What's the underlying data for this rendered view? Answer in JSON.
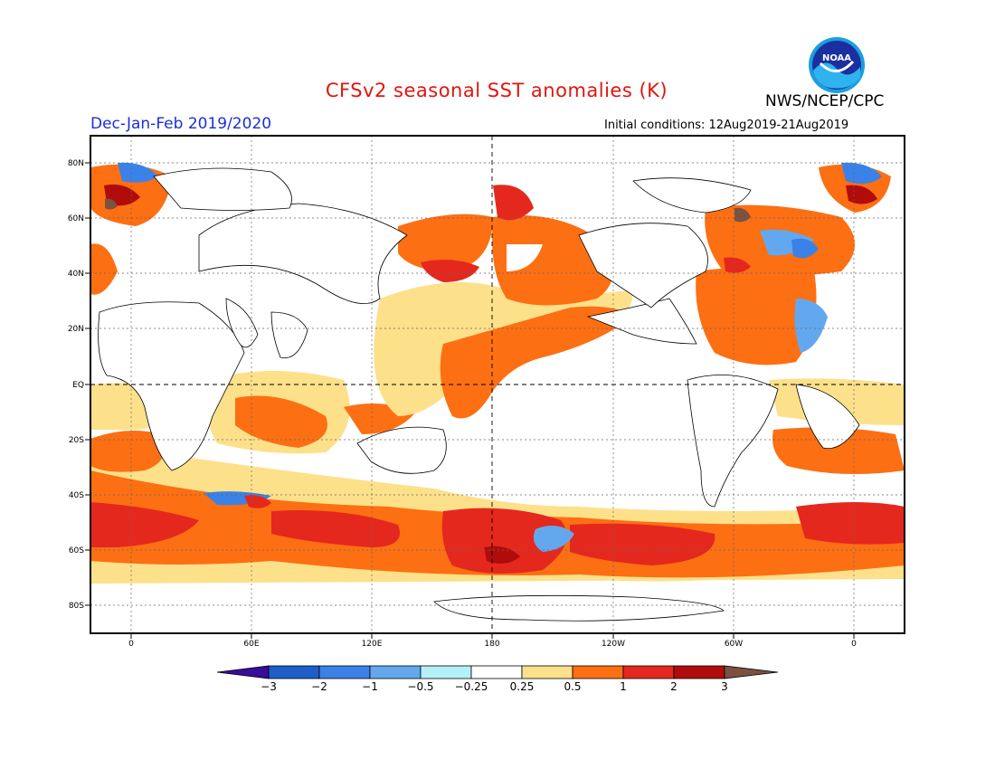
{
  "title": "CFSv2 seasonal SST anomalies (K)",
  "agency": "NWS/NCEP/CPC",
  "logo_text": "NOAA",
  "season": "Dec-Jan-Feb 2019/2020",
  "initial_conditions": "Initial conditions: 12Aug2019-21Aug2019",
  "map": {
    "projection": "cylindrical equidistant, centered 180",
    "lon_range": [
      -20,
      380
    ],
    "lat_range": [
      -90,
      90
    ],
    "grid": "dashed, every 60 lon / 20 lat",
    "lat_labels": [
      "80N",
      "60N",
      "40N",
      "20N",
      "EQ",
      "20S",
      "40S",
      "60S",
      "80S"
    ],
    "lon_labels": [
      "0",
      "60E",
      "120E",
      "180",
      "120W",
      "60W",
      "0"
    ]
  },
  "colorbar": {
    "levels": [
      "-3",
      "-2",
      "-1",
      "-0.5",
      "-0.25",
      "0.25",
      "0.5",
      "1",
      "2",
      "3"
    ],
    "colors": [
      "#3a0c9a",
      "#1f5ec8",
      "#3a82e8",
      "#63a8ee",
      "#b4f0f8",
      "#ffffff",
      "#fde08a",
      "#fd6f13",
      "#e4281e",
      "#b00c0c",
      "#7a5240"
    ]
  }
}
